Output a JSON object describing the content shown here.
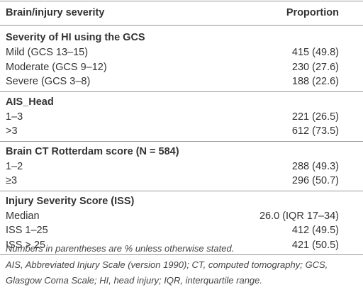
{
  "table": {
    "header": [
      "Brain/injury severity",
      "Proportion"
    ],
    "sections": [
      {
        "title": "Severity of HI using the GCS",
        "rows": [
          [
            "Mild (GCS 13–15)",
            "415 (49.8)"
          ],
          [
            "Moderate (GCS 9–12)",
            "230 (27.6)"
          ],
          [
            "Severe (GCS 3–8)",
            "188 (22.6)"
          ]
        ]
      },
      {
        "title": "AIS_Head",
        "rows": [
          [
            "1–3",
            "221 (26.5)"
          ],
          [
            ">3",
            "612 (73.5)"
          ]
        ]
      },
      {
        "title": "Brain CT Rotterdam score (N = 584)",
        "rows": [
          [
            "1–2",
            "288 (49.3)"
          ],
          [
            "≥3",
            "296 (50.7)"
          ]
        ]
      },
      {
        "title": "Injury Severity Score (ISS)",
        "rows": [
          [
            "Median",
            "26.0 (IQR 17–34)"
          ],
          [
            "ISS 1–25",
            "412 (49.5)"
          ],
          [
            "ISS > 25",
            "421 (50.5)"
          ]
        ]
      }
    ],
    "footnotes": [
      "Numbers in parentheses are % unless otherwise stated.",
      "AIS, Abbreviated Injury Scale (version 1990); CT, computed tomography; GCS,",
      "Glasgow Coma Scale; HI, head injury; IQR, interquartile range."
    ]
  }
}
